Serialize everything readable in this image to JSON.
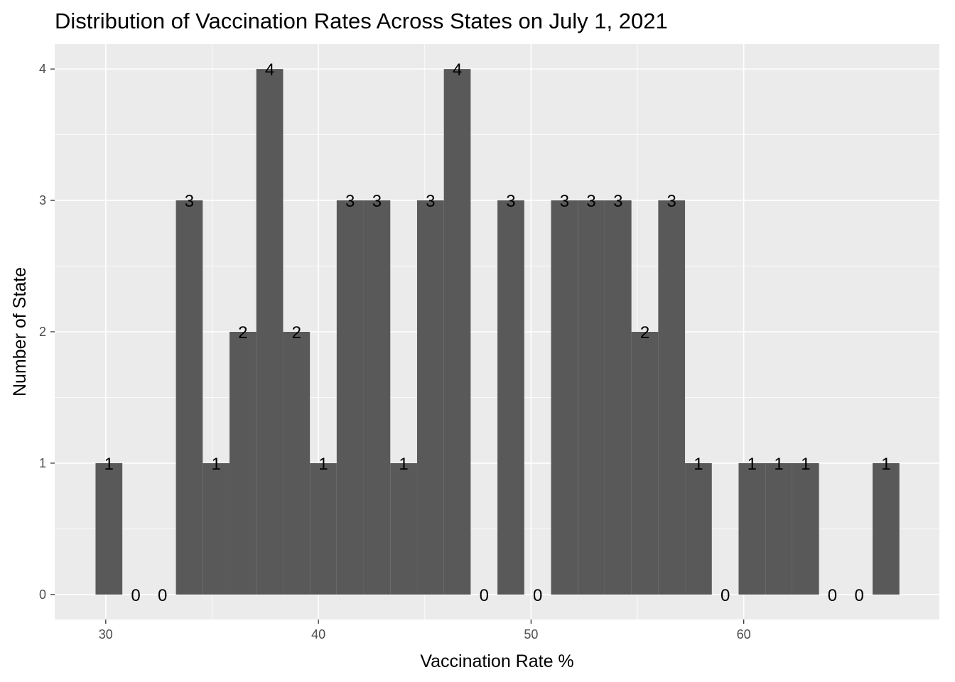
{
  "chart_data": {
    "type": "bar",
    "title": "Distribution of Vaccination Rates Across States on July 1, 2021",
    "xlabel": "Vaccination Rate %",
    "ylabel": "Number of State",
    "xlim": [
      27.6,
      69.2
    ],
    "ylim": [
      -0.19,
      4.19
    ],
    "x_ticks": [
      30,
      40,
      50,
      60
    ],
    "y_ticks": [
      0,
      1,
      2,
      3,
      4
    ],
    "bin_width": 1.26,
    "bins": [
      {
        "x": 30.15,
        "count": 1
      },
      {
        "x": 31.41,
        "count": 0
      },
      {
        "x": 32.67,
        "count": 0
      },
      {
        "x": 33.93,
        "count": 3
      },
      {
        "x": 35.19,
        "count": 1
      },
      {
        "x": 36.45,
        "count": 2
      },
      {
        "x": 37.71,
        "count": 4
      },
      {
        "x": 38.97,
        "count": 2
      },
      {
        "x": 40.23,
        "count": 1
      },
      {
        "x": 41.49,
        "count": 3
      },
      {
        "x": 42.75,
        "count": 3
      },
      {
        "x": 44.01,
        "count": 1
      },
      {
        "x": 45.27,
        "count": 3
      },
      {
        "x": 46.53,
        "count": 4
      },
      {
        "x": 47.79,
        "count": 0
      },
      {
        "x": 49.05,
        "count": 3
      },
      {
        "x": 50.31,
        "count": 0
      },
      {
        "x": 51.57,
        "count": 3
      },
      {
        "x": 52.83,
        "count": 3
      },
      {
        "x": 54.09,
        "count": 3
      },
      {
        "x": 55.35,
        "count": 2
      },
      {
        "x": 56.61,
        "count": 3
      },
      {
        "x": 57.87,
        "count": 1
      },
      {
        "x": 59.13,
        "count": 0
      },
      {
        "x": 60.39,
        "count": 1
      },
      {
        "x": 61.65,
        "count": 1
      },
      {
        "x": 62.91,
        "count": 1
      },
      {
        "x": 64.17,
        "count": 0
      },
      {
        "x": 65.43,
        "count": 0
      },
      {
        "x": 66.69,
        "count": 1
      }
    ],
    "grid": true,
    "legend": "none",
    "colors": {
      "bar": "#595959",
      "panel": "#ebebeb",
      "grid": "#ffffff",
      "tick_text": "#4d4d4d",
      "tick_mark": "#333333",
      "text": "#000000"
    }
  }
}
